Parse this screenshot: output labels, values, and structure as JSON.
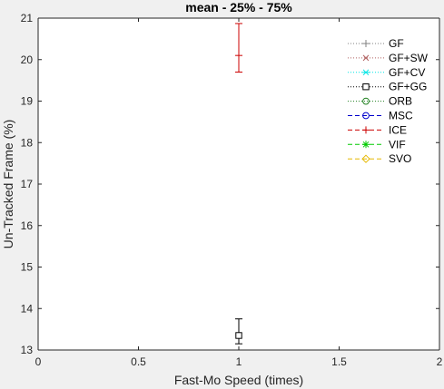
{
  "chart_data": {
    "type": "scatter",
    "title": "mean - 25% - 75%",
    "xlabel": "Fast-Mo Speed (times)",
    "ylabel": "Un-Tracked Frame (%)",
    "xlim": [
      0,
      2
    ],
    "ylim": [
      13,
      21
    ],
    "xticks": [
      "0",
      "0.5",
      "1",
      "1.5",
      "2"
    ],
    "yticks": [
      "13",
      "14",
      "15",
      "16",
      "17",
      "18",
      "19",
      "20",
      "21"
    ],
    "xtick_values": [
      0,
      0.5,
      1,
      1.5,
      2
    ],
    "ytick_values": [
      13,
      14,
      15,
      16,
      17,
      18,
      19,
      20,
      21
    ],
    "grid": false,
    "legend_position": "top-right",
    "series": [
      {
        "name": "GF",
        "color": "#808080",
        "marker": "plus",
        "line": "dotted",
        "points": []
      },
      {
        "name": "GF+SW",
        "color": "#b06060",
        "marker": "x",
        "line": "dotted",
        "points": []
      },
      {
        "name": "GF+CV",
        "color": "#00e5e5",
        "marker": "asterisk-x",
        "line": "dotted",
        "points": []
      },
      {
        "name": "GF+GG",
        "color": "#000000",
        "marker": "square",
        "line": "dotted",
        "points": [
          {
            "x": 1,
            "mean": 13.35,
            "q25": 13.15,
            "q75": 13.75
          }
        ]
      },
      {
        "name": "ORB",
        "color": "#208020",
        "marker": "circle",
        "line": "dotted",
        "points": []
      },
      {
        "name": "MSC",
        "color": "#0000cc",
        "marker": "circle",
        "line": "dashed",
        "points": []
      },
      {
        "name": "ICE",
        "color": "#cc0000",
        "marker": "plus",
        "line": "dashed",
        "points": [
          {
            "x": 1,
            "mean": 20.1,
            "q25": 19.7,
            "q75": 20.87
          }
        ]
      },
      {
        "name": "VIF",
        "color": "#00cc00",
        "marker": "asterisk",
        "line": "dashed",
        "points": []
      },
      {
        "name": "SVO",
        "color": "#e6b800",
        "marker": "diamond",
        "line": "dashed",
        "points": []
      }
    ]
  }
}
